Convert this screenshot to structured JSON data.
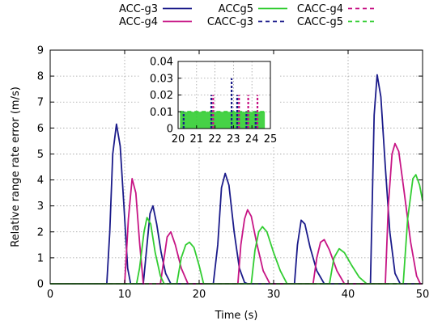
{
  "chart_data": [
    {
      "type": "line",
      "panel": "main",
      "xlabel": "Time (s)",
      "ylabel": "Relative range rate error (m/s)",
      "xlim": [
        0,
        50
      ],
      "ylim": [
        0,
        9
      ],
      "xticks": [
        "0",
        "10",
        "20",
        "30",
        "40",
        "50"
      ],
      "yticks": [
        "0",
        "1",
        "2",
        "3",
        "4",
        "5",
        "6",
        "7",
        "8",
        "9"
      ],
      "grid": true,
      "legend_position": "top, outside plot",
      "series": [
        {
          "name": "ACC-g3",
          "color": "#1b1b8a",
          "dash": "solid",
          "points": [
            [
              0,
              0
            ],
            [
              7.6,
              0
            ],
            [
              8.0,
              2.0
            ],
            [
              8.4,
              5.0
            ],
            [
              8.9,
              6.15
            ],
            [
              9.4,
              5.3
            ],
            [
              9.9,
              3.0
            ],
            [
              10.4,
              0.6
            ],
            [
              10.8,
              0
            ],
            [
              12.5,
              0
            ],
            [
              12.9,
              1.2
            ],
            [
              13.4,
              2.7
            ],
            [
              13.8,
              3.0
            ],
            [
              14.3,
              2.3
            ],
            [
              14.9,
              1.2
            ],
            [
              15.5,
              0.4
            ],
            [
              16.2,
              0
            ],
            [
              21.9,
              0
            ],
            [
              22.5,
              1.5
            ],
            [
              23.0,
              3.7
            ],
            [
              23.5,
              4.25
            ],
            [
              24.0,
              3.8
            ],
            [
              24.7,
              2.0
            ],
            [
              25.4,
              0.6
            ],
            [
              26.1,
              0.05
            ],
            [
              26.5,
              0
            ],
            [
              32.8,
              0
            ],
            [
              33.2,
              1.5
            ],
            [
              33.7,
              2.45
            ],
            [
              34.2,
              2.3
            ],
            [
              34.9,
              1.4
            ],
            [
              35.8,
              0.5
            ],
            [
              36.8,
              0
            ],
            [
              43.0,
              0
            ],
            [
              43.5,
              6.5
            ],
            [
              43.9,
              8.05
            ],
            [
              44.4,
              7.2
            ],
            [
              45.0,
              4.5
            ],
            [
              45.6,
              2.0
            ],
            [
              46.3,
              0.4
            ],
            [
              47.0,
              0
            ],
            [
              50,
              0
            ]
          ]
        },
        {
          "name": "ACC-g4",
          "color": "#c71585",
          "dash": "solid",
          "points": [
            [
              0,
              0
            ],
            [
              10.0,
              0
            ],
            [
              10.5,
              2.5
            ],
            [
              11.0,
              4.05
            ],
            [
              11.5,
              3.5
            ],
            [
              12.0,
              1.6
            ],
            [
              12.5,
              0
            ],
            [
              14.8,
              0
            ],
            [
              15.2,
              0.8
            ],
            [
              15.7,
              1.8
            ],
            [
              16.2,
              2.0
            ],
            [
              16.8,
              1.5
            ],
            [
              17.6,
              0.6
            ],
            [
              18.5,
              0
            ],
            [
              25.2,
              0
            ],
            [
              25.6,
              1.5
            ],
            [
              26.1,
              2.5
            ],
            [
              26.5,
              2.85
            ],
            [
              27.0,
              2.6
            ],
            [
              27.7,
              1.6
            ],
            [
              28.6,
              0.5
            ],
            [
              29.5,
              0
            ],
            [
              35.3,
              0
            ],
            [
              35.8,
              1.0
            ],
            [
              36.3,
              1.6
            ],
            [
              36.8,
              1.7
            ],
            [
              37.5,
              1.3
            ],
            [
              38.5,
              0.5
            ],
            [
              39.5,
              0
            ],
            [
              45.0,
              0
            ],
            [
              45.4,
              3.0
            ],
            [
              45.9,
              5.0
            ],
            [
              46.3,
              5.4
            ],
            [
              46.8,
              5.1
            ],
            [
              47.5,
              3.6
            ],
            [
              48.4,
              1.6
            ],
            [
              49.2,
              0.3
            ],
            [
              49.7,
              0
            ],
            [
              50,
              0
            ]
          ]
        },
        {
          "name": "ACCg5",
          "color": "#32cd32",
          "dash": "solid",
          "points": [
            [
              0,
              0
            ],
            [
              11.6,
              0
            ],
            [
              12.0,
              0.6
            ],
            [
              12.6,
              2.0
            ],
            [
              13.0,
              2.55
            ],
            [
              13.5,
              2.3
            ],
            [
              14.1,
              1.2
            ],
            [
              14.8,
              0.3
            ],
            [
              15.3,
              0
            ],
            [
              17.0,
              0
            ],
            [
              17.6,
              1.0
            ],
            [
              18.2,
              1.5
            ],
            [
              18.7,
              1.6
            ],
            [
              19.3,
              1.4
            ],
            [
              20.0,
              0.7
            ],
            [
              20.6,
              0
            ],
            [
              27.0,
              0
            ],
            [
              27.5,
              1.3
            ],
            [
              28.0,
              2.0
            ],
            [
              28.5,
              2.2
            ],
            [
              29.1,
              2.0
            ],
            [
              30.0,
              1.2
            ],
            [
              30.9,
              0.5
            ],
            [
              31.8,
              0
            ],
            [
              37.5,
              0
            ],
            [
              38.1,
              1.0
            ],
            [
              38.8,
              1.35
            ],
            [
              39.5,
              1.2
            ],
            [
              40.5,
              0.7
            ],
            [
              41.5,
              0.25
            ],
            [
              42.5,
              0
            ],
            [
              47.4,
              0
            ],
            [
              48.0,
              2.5
            ],
            [
              48.7,
              4.05
            ],
            [
              49.1,
              4.2
            ],
            [
              49.6,
              3.8
            ],
            [
              50,
              3.2
            ]
          ]
        },
        {
          "name": "CACC-g3",
          "color": "#1b1b8a",
          "dash": "dashed",
          "points": [
            [
              0,
              0
            ],
            [
              50,
              0
            ]
          ]
        },
        {
          "name": "CACC-g4",
          "color": "#c71585",
          "dash": "dashed",
          "points": [
            [
              0,
              0
            ],
            [
              50,
              0
            ]
          ]
        },
        {
          "name": "CACC-g5",
          "color": "#32cd32",
          "dash": "dashed",
          "points": [
            [
              0,
              0
            ],
            [
              50,
              0
            ]
          ]
        }
      ]
    },
    {
      "type": "line",
      "panel": "inset",
      "xlim": [
        20,
        25
      ],
      "ylim": [
        0,
        0.04
      ],
      "xticks": [
        "20",
        "21",
        "22",
        "23",
        "24",
        "25"
      ],
      "yticks": [
        "0",
        "0.01",
        "0.02",
        "0.03",
        "0.04"
      ],
      "grid": true,
      "series": [
        {
          "name": "CACC-g5",
          "color": "#32cd32",
          "dash": "dashed",
          "y_range": [
            0,
            0.01
          ],
          "x_range": [
            20.1,
            24.7
          ],
          "band": true
        },
        {
          "name": "CACC-g4",
          "color": "#c71585",
          "dash": "dashed",
          "spikes": [
            [
              21.9,
              0.02
            ],
            [
              23.3,
              0.02
            ],
            [
              23.8,
              0.02
            ],
            [
              24.3,
              0.02
            ]
          ]
        },
        {
          "name": "CACC-g3",
          "color": "#1b1b8a",
          "dash": "dashed",
          "spikes": [
            [
              20.3,
              0.01
            ],
            [
              21.8,
              0.02
            ],
            [
              22.9,
              0.03
            ],
            [
              23.2,
              0.02
            ],
            [
              23.7,
              0.01
            ],
            [
              24.2,
              0.01
            ]
          ]
        }
      ]
    }
  ],
  "legend": [
    {
      "label": "ACC-g3",
      "color": "#1b1b8a",
      "dash": "solid"
    },
    {
      "label": "ACCg5",
      "color": "#32cd32",
      "dash": "solid"
    },
    {
      "label": "CACC-g4",
      "color": "#c71585",
      "dash": "dashed"
    },
    {
      "label": "ACC-g4",
      "color": "#c71585",
      "dash": "solid"
    },
    {
      "label": "CACC-g3",
      "color": "#1b1b8a",
      "dash": "dashed"
    },
    {
      "label": "CACC-g5",
      "color": "#32cd32",
      "dash": "dashed"
    }
  ]
}
